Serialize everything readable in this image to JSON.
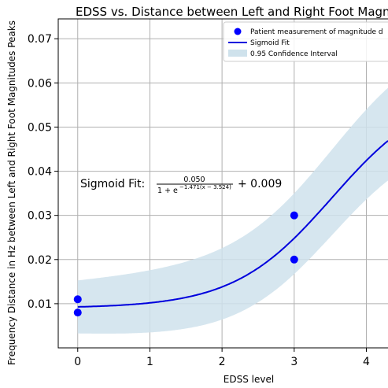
{
  "chart_data": {
    "type": "scatter",
    "title": "EDSS vs. Distance between Left and Right Foot Magnitudes Peaks",
    "xlabel": "EDSS level",
    "ylabel": "Frequency Distance in Hz between Left and Right Foot Magnitudes Peaks",
    "xlim": [
      -0.27,
      4.3
    ],
    "ylim": [
      0.0,
      0.0745
    ],
    "xticks": [
      0,
      1,
      2,
      3,
      4
    ],
    "yticks": [
      0.01,
      0.02,
      0.03,
      0.04,
      0.05,
      0.06,
      0.07
    ],
    "xtick_labels": [
      "0",
      "1",
      "2",
      "3",
      "4"
    ],
    "ytick_labels": [
      "0.01",
      "0.02",
      "0.03",
      "0.04",
      "0.05",
      "0.06",
      "0.07"
    ],
    "grid": true,
    "legend_position": "top-right",
    "colors": {
      "points": "#0000ff",
      "fit": "#0000dd",
      "band": "#cfe2ec",
      "grid": "#b0b0b0"
    },
    "series": [
      {
        "name": "Patient measurement of magnitude d",
        "kind": "scatter",
        "points": [
          {
            "x": 0,
            "y": 0.011
          },
          {
            "x": 0,
            "y": 0.008
          },
          {
            "x": 3,
            "y": 0.03
          },
          {
            "x": 3,
            "y": 0.02
          }
        ]
      },
      {
        "name": "Sigmoid Fit",
        "kind": "line",
        "params": {
          "a": 0.05,
          "k": 1.471,
          "x0": 3.524,
          "c": 0.009
        }
      },
      {
        "name": "0.95 Confidence Interval",
        "kind": "band",
        "lower_offset_at_start": 0.006,
        "upper_offset_at_start": 0.006,
        "lower_offset_at_end": 0.009,
        "upper_offset_at_end": 0.012
      }
    ],
    "annotation": {
      "prefix": "Sigmoid Fit:",
      "numerator": "0.050",
      "denominator_base": "1 + e",
      "exponent": "−1.471(x − 3.524)",
      "suffix": "+ 0.009"
    }
  }
}
